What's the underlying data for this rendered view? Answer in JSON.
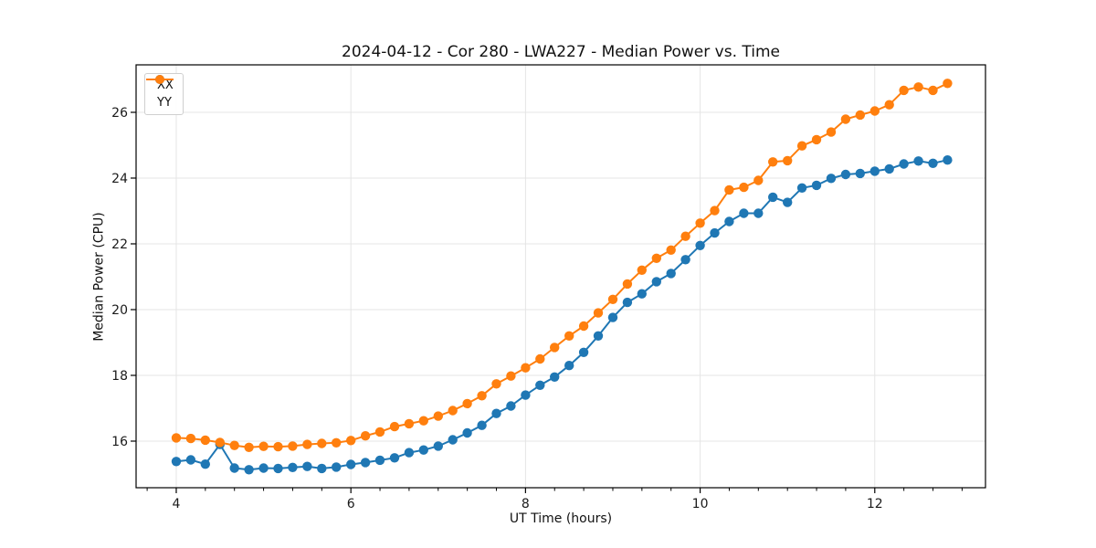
{
  "chart_data": {
    "type": "line",
    "title": "2024-04-12 - Cor 280 - LWA227 - Median Power vs. Time",
    "xlabel": "UT Time (hours)",
    "ylabel": "Median Power (CPU)",
    "xlim": [
      3.54,
      13.268
    ],
    "ylim": [
      14.583,
      27.444
    ],
    "x_major_ticks": [
      4,
      6,
      8,
      10,
      12
    ],
    "x_tick_labels": [
      "4",
      "6",
      "8",
      "10",
      "12"
    ],
    "x_minor_tick_step": 0.3333,
    "y_major_ticks": [
      16,
      18,
      20,
      22,
      24,
      26
    ],
    "y_tick_labels": [
      "16",
      "18",
      "20",
      "22",
      "24",
      "26"
    ],
    "grid": true,
    "grid_color": "#e5e5e5",
    "legend_position": "upper left",
    "x": [
      4.0,
      4.167,
      4.333,
      4.5,
      4.667,
      4.833,
      5.0,
      5.167,
      5.333,
      5.5,
      5.667,
      5.833,
      6.0,
      6.167,
      6.333,
      6.5,
      6.667,
      6.833,
      7.0,
      7.167,
      7.333,
      7.5,
      7.667,
      7.833,
      8.0,
      8.167,
      8.333,
      8.5,
      8.667,
      8.833,
      9.0,
      9.167,
      9.333,
      9.5,
      9.667,
      9.833,
      10.0,
      10.167,
      10.333,
      10.5,
      10.667,
      10.833,
      11.0,
      11.167,
      11.333,
      11.5,
      11.667,
      11.833,
      12.0,
      12.167,
      12.333,
      12.5,
      12.667,
      12.833
    ],
    "series": [
      {
        "name": "XX",
        "color": "#1f77b4",
        "values": [
          15.38,
          15.43,
          15.3,
          15.9,
          15.18,
          15.13,
          15.18,
          15.17,
          15.2,
          15.23,
          15.17,
          15.21,
          15.29,
          15.35,
          15.42,
          15.49,
          15.65,
          15.73,
          15.85,
          16.04,
          16.25,
          16.48,
          16.84,
          17.07,
          17.4,
          17.7,
          17.95,
          18.3,
          18.7,
          19.2,
          19.76,
          20.22,
          20.48,
          20.85,
          21.1,
          21.52,
          21.95,
          22.33,
          22.68,
          22.93,
          22.93,
          23.42,
          23.26,
          23.7,
          23.78,
          23.99,
          24.11,
          24.14,
          24.21,
          24.28,
          24.43,
          24.52,
          24.45,
          24.55
        ]
      },
      {
        "name": "YY",
        "color": "#ff7f0e",
        "values": [
          16.1,
          16.08,
          16.03,
          15.96,
          15.87,
          15.81,
          15.84,
          15.83,
          15.85,
          15.9,
          15.93,
          15.95,
          16.02,
          16.16,
          16.28,
          16.44,
          16.53,
          16.62,
          16.76,
          16.93,
          17.14,
          17.38,
          17.74,
          17.98,
          18.23,
          18.5,
          18.85,
          19.2,
          19.5,
          19.9,
          20.31,
          20.78,
          21.2,
          21.56,
          21.81,
          22.23,
          22.63,
          23.01,
          23.64,
          23.72,
          23.93,
          24.49,
          24.53,
          24.98,
          25.17,
          25.4,
          25.79,
          25.92,
          26.04,
          26.23,
          26.67,
          26.77,
          26.67,
          26.88
        ]
      }
    ]
  }
}
